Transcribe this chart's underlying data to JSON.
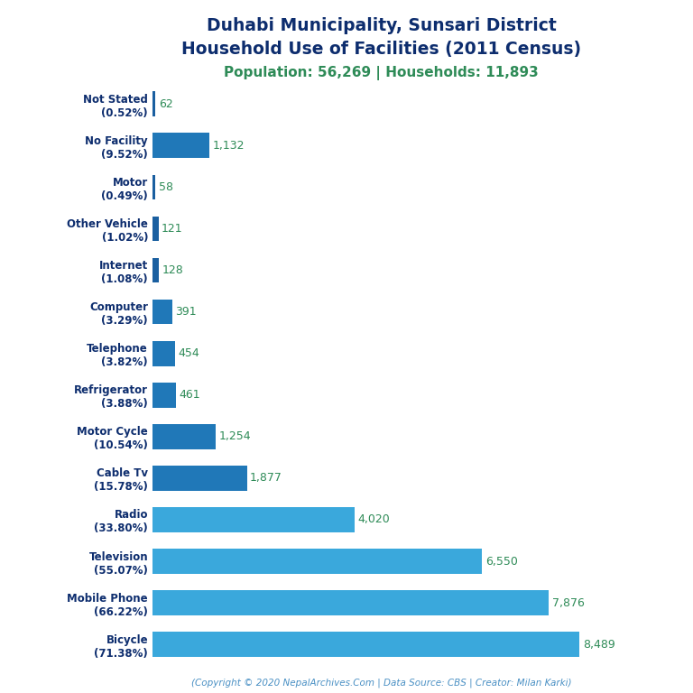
{
  "title_line1": "Duhabi Municipality, Sunsari District",
  "title_line2": "Household Use of Facilities (2011 Census)",
  "subtitle": "Population: 56,269 | Households: 11,893",
  "copyright": "(Copyright © 2020 NepalArchives.Com | Data Source: CBS | Creator: Milan Karki)",
  "categories": [
    "Bicycle\n(71.38%)",
    "Mobile Phone\n(66.22%)",
    "Television\n(55.07%)",
    "Radio\n(33.80%)",
    "Cable Tv\n(15.78%)",
    "Motor Cycle\n(10.54%)",
    "Refrigerator\n(3.88%)",
    "Telephone\n(3.82%)",
    "Computer\n(3.29%)",
    "Internet\n(1.08%)",
    "Other Vehicle\n(1.02%)",
    "Motor\n(0.49%)",
    "No Facility\n(9.52%)",
    "Not Stated\n(0.52%)"
  ],
  "values": [
    8489,
    7876,
    6550,
    4020,
    1877,
    1254,
    461,
    454,
    391,
    128,
    121,
    58,
    1132,
    62
  ],
  "bar_colors": [
    "#3aa8dc",
    "#3aa8dc",
    "#3aa8dc",
    "#3aa8dc",
    "#2078b8",
    "#2078b8",
    "#2078b8",
    "#2078b8",
    "#2078b8",
    "#1a5fa0",
    "#1a5fa0",
    "#1a5fa0",
    "#2078b8",
    "#1a5fa0"
  ],
  "title_color": "#0d2d6e",
  "subtitle_color": "#2e8b57",
  "value_color": "#2e8b57",
  "label_color": "#0d2d6e",
  "copyright_color": "#4a90c4",
  "background_color": "#ffffff",
  "xlim": [
    0,
    9500
  ]
}
